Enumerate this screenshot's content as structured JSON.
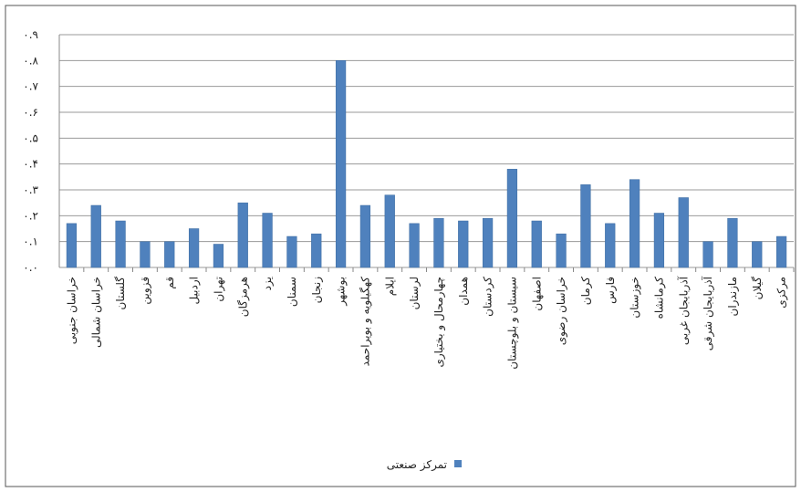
{
  "chart_data": {
    "type": "bar",
    "categories": [
      "خراسان جنوبی",
      "خراسان شمالی",
      "گلستان",
      "قزوین",
      "قم",
      "اردبیل",
      "تهران",
      "هرمزگان",
      "یزد",
      "سمنان",
      "زنجان",
      "بوشهر",
      "کهگیلویه و بویراحمد",
      "ایلام",
      "لرستان",
      "چهارمحال و بختیاری",
      "همدان",
      "کردستان",
      "سیستان و بلوچستان",
      "اصفهان",
      "خراسان رضوی",
      "کرمان",
      "فارس",
      "خوزستان",
      "کرمانشاه",
      "آذربایجان غربی",
      "آذربایجان شرقی",
      "مازندران",
      "گیلان",
      "مرکزی"
    ],
    "series": [
      {
        "name": "تمرکز صنعتی",
        "color": "#4f81bd",
        "values": [
          0.17,
          0.24,
          0.18,
          0.1,
          0.1,
          0.15,
          0.09,
          0.25,
          0.21,
          0.12,
          0.13,
          0.8,
          0.24,
          0.28,
          0.17,
          0.19,
          0.18,
          0.19,
          0.38,
          0.18,
          0.13,
          0.32,
          0.17,
          0.34,
          0.21,
          0.27,
          0.1,
          0.19,
          0.1,
          0.12
        ]
      }
    ],
    "ylim": [
      0,
      0.9
    ],
    "yticks": [
      {
        "value": 0,
        "label": "۰.۰"
      },
      {
        "value": 0.1,
        "label": "۰.۱"
      },
      {
        "value": 0.2,
        "label": "۰.۲"
      },
      {
        "value": 0.3,
        "label": "۰.۳"
      },
      {
        "value": 0.4,
        "label": "۰.۴"
      },
      {
        "value": 0.5,
        "label": "۰.۵"
      },
      {
        "value": 0.6,
        "label": "۰.۶"
      },
      {
        "value": 0.7,
        "label": "۰.۷"
      },
      {
        "value": 0.8,
        "label": "۰.۸"
      },
      {
        "value": 0.9,
        "label": "۰.۹"
      }
    ],
    "grid": true,
    "legend": "bottom"
  }
}
